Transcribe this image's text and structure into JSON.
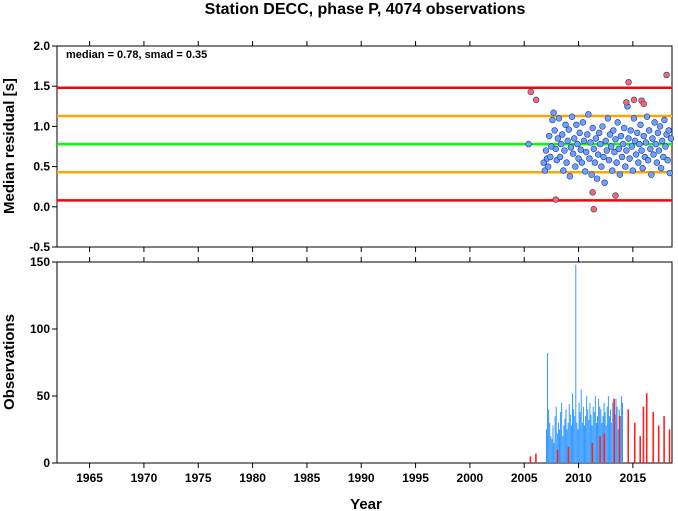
{
  "chart_data": [
    {
      "type": "scatter",
      "title": "Station DECC, phase P, 4074 observations",
      "ylabel": "Median residual [s]",
      "annotation": "median = 0.78, smad = 0.35",
      "xlim": [
        1962,
        2018.6
      ],
      "ylim": [
        -0.5,
        2.0
      ],
      "yticks": [
        "-0.5",
        "0.0",
        "0.5",
        "1.0",
        "1.5",
        "2.0"
      ],
      "ytick_values": [
        -0.5,
        0.0,
        0.5,
        1.0,
        1.5,
        2.0
      ],
      "reference_lines": [
        {
          "value": 1.48,
          "color": "#ff0000"
        },
        {
          "value": 1.13,
          "color": "#ffa500"
        },
        {
          "value": 0.78,
          "color": "#00ff00"
        },
        {
          "value": 0.43,
          "color": "#ffa500"
        },
        {
          "value": 0.08,
          "color": "#ff0000"
        }
      ],
      "series": [
        {
          "color": "#6fa0ff",
          "points": [
            [
              2005.4,
              0.78
            ],
            [
              2006.8,
              0.55
            ],
            [
              2006.9,
              0.45
            ],
            [
              2007.0,
              0.7
            ],
            [
              2007.1,
              0.6
            ],
            [
              2007.2,
              0.5
            ],
            [
              2007.3,
              0.88
            ],
            [
              2007.4,
              0.62
            ],
            [
              2007.5,
              0.75
            ],
            [
              2007.6,
              1.08
            ],
            [
              2007.7,
              1.17
            ],
            [
              2007.8,
              0.95
            ],
            [
              2007.9,
              0.72
            ],
            [
              2008.0,
              0.58
            ],
            [
              2008.1,
              0.85
            ],
            [
              2008.2,
              1.1
            ],
            [
              2008.3,
              0.62
            ],
            [
              2008.4,
              0.78
            ],
            [
              2008.5,
              0.9
            ],
            [
              2008.6,
              0.45
            ],
            [
              2008.7,
              0.7
            ],
            [
              2008.8,
              1.02
            ],
            [
              2008.9,
              0.55
            ],
            [
              2009.0,
              0.82
            ],
            [
              2009.1,
              0.96
            ],
            [
              2009.2,
              0.38
            ],
            [
              2009.3,
              0.74
            ],
            [
              2009.4,
              1.12
            ],
            [
              2009.5,
              0.66
            ],
            [
              2009.6,
              0.85
            ],
            [
              2009.7,
              0.5
            ],
            [
              2009.8,
              1.02
            ],
            [
              2009.9,
              0.78
            ],
            [
              2010.0,
              0.6
            ],
            [
              2010.1,
              0.92
            ],
            [
              2010.2,
              0.71
            ],
            [
              2010.3,
              0.55
            ],
            [
              2010.4,
              1.05
            ],
            [
              2010.5,
              0.82
            ],
            [
              2010.6,
              0.44
            ],
            [
              2010.7,
              0.68
            ],
            [
              2010.8,
              0.9
            ],
            [
              2010.9,
              1.15
            ],
            [
              2011.0,
              0.6
            ],
            [
              2011.1,
              0.8
            ],
            [
              2011.2,
              0.4
            ],
            [
              2011.3,
              0.98
            ],
            [
              2011.4,
              0.72
            ],
            [
              2011.5,
              0.55
            ],
            [
              2011.6,
              0.85
            ],
            [
              2011.7,
              0.35
            ],
            [
              2011.8,
              0.65
            ],
            [
              2011.9,
              0.92
            ],
            [
              2012.0,
              0.78
            ],
            [
              2012.1,
              0.5
            ],
            [
              2012.2,
              1.0
            ],
            [
              2012.3,
              0.62
            ],
            [
              2012.4,
              0.3
            ],
            [
              2012.5,
              0.82
            ],
            [
              2012.6,
              0.7
            ],
            [
              2012.7,
              1.1
            ],
            [
              2012.8,
              0.58
            ],
            [
              2012.9,
              0.9
            ],
            [
              2013.0,
              0.75
            ],
            [
              2013.1,
              0.45
            ],
            [
              2013.2,
              0.95
            ],
            [
              2013.3,
              0.68
            ],
            [
              2013.4,
              0.84
            ],
            [
              2013.5,
              0.55
            ],
            [
              2013.6,
              1.05
            ],
            [
              2013.7,
              0.72
            ],
            [
              2013.8,
              0.4
            ],
            [
              2013.9,
              0.88
            ],
            [
              2014.0,
              0.62
            ],
            [
              2014.1,
              0.78
            ],
            [
              2014.2,
              0.98
            ],
            [
              2014.3,
              0.5
            ],
            [
              2014.4,
              0.7
            ],
            [
              2014.5,
              1.25
            ],
            [
              2014.6,
              0.85
            ],
            [
              2014.7,
              0.6
            ],
            [
              2014.8,
              0.95
            ],
            [
              2014.9,
              0.75
            ],
            [
              2015.0,
              0.45
            ],
            [
              2015.1,
              1.1
            ],
            [
              2015.2,
              0.82
            ],
            [
              2015.3,
              0.65
            ],
            [
              2015.4,
              0.92
            ],
            [
              2015.5,
              0.55
            ],
            [
              2015.6,
              0.78
            ],
            [
              2015.7,
              1.02
            ],
            [
              2015.8,
              0.7
            ],
            [
              2015.9,
              0.48
            ],
            [
              2016.0,
              0.88
            ],
            [
              2016.1,
              0.62
            ],
            [
              2016.2,
              0.8
            ],
            [
              2016.3,
              1.12
            ],
            [
              2016.4,
              0.58
            ],
            [
              2016.5,
              0.95
            ],
            [
              2016.6,
              0.72
            ],
            [
              2016.7,
              0.4
            ],
            [
              2016.8,
              0.85
            ],
            [
              2016.9,
              0.65
            ],
            [
              2017.0,
              1.05
            ],
            [
              2017.1,
              0.78
            ],
            [
              2017.2,
              0.55
            ],
            [
              2017.3,
              0.92
            ],
            [
              2017.4,
              0.7
            ],
            [
              2017.5,
              1.0
            ],
            [
              2017.6,
              0.48
            ],
            [
              2017.7,
              0.82
            ],
            [
              2017.8,
              0.62
            ],
            [
              2017.9,
              1.08
            ],
            [
              2018.0,
              0.75
            ],
            [
              2018.1,
              0.9
            ],
            [
              2018.2,
              0.58
            ],
            [
              2018.3,
              0.95
            ],
            [
              2018.4,
              0.42
            ],
            [
              2018.5,
              0.85
            ]
          ]
        },
        {
          "color": "#ff6666",
          "points": [
            [
              2005.6,
              1.43
            ],
            [
              2006.1,
              1.33
            ],
            [
              2007.9,
              0.09
            ],
            [
              2011.3,
              0.18
            ],
            [
              2011.4,
              -0.03
            ],
            [
              2013.4,
              0.14
            ],
            [
              2014.4,
              1.3
            ],
            [
              2014.6,
              1.55
            ],
            [
              2015.1,
              1.33
            ],
            [
              2015.8,
              1.32
            ],
            [
              2016.0,
              1.28
            ],
            [
              2018.1,
              1.64
            ]
          ]
        }
      ]
    },
    {
      "type": "bar",
      "xlabel": "Year",
      "ylabel": "Observations",
      "xlim": [
        1962,
        2018.6
      ],
      "ylim": [
        0,
        150
      ],
      "xticks": [
        "1965",
        "1970",
        "1975",
        "1980",
        "1985",
        "1990",
        "1995",
        "2000",
        "2005",
        "2010",
        "2015"
      ],
      "xtick_values": [
        1965,
        1970,
        1975,
        1980,
        1985,
        1990,
        1995,
        2000,
        2005,
        2010,
        2015
      ],
      "yticks": [
        "0",
        "50",
        "100",
        "150"
      ],
      "ytick_values": [
        0,
        50,
        100,
        150
      ],
      "series": [
        {
          "color": "#3399ff",
          "start": 2007.0,
          "step": 0.1,
          "values": [
            25,
            82,
            40,
            30,
            20,
            18,
            28,
            15,
            35,
            42,
            22,
            30,
            25,
            38,
            45,
            20,
            28,
            33,
            40,
            25,
            30,
            44,
            36,
            28,
            52,
            40,
            35,
            148,
            30,
            25,
            45,
            38,
            55,
            30,
            42,
            28,
            35,
            50,
            40,
            32,
            45,
            36,
            28,
            42,
            38,
            50,
            30,
            35,
            48,
            42,
            40,
            30,
            35,
            45,
            38,
            28,
            42,
            50,
            35,
            40,
            30,
            45,
            38,
            36,
            48,
            42,
            25,
            40,
            35,
            50,
            45
          ]
        },
        {
          "color": "#ff2020",
          "points": [
            [
              2005.5,
              5
            ],
            [
              2006.0,
              7
            ],
            [
              2008.0,
              10
            ],
            [
              2009.0,
              12
            ],
            [
              2011.2,
              15
            ],
            [
              2011.9,
              20
            ],
            [
              2012.3,
              22
            ],
            [
              2013.2,
              48
            ],
            [
              2013.7,
              35
            ],
            [
              2014.5,
              40
            ],
            [
              2015.1,
              30
            ],
            [
              2015.6,
              20
            ],
            [
              2015.9,
              42
            ],
            [
              2016.2,
              52
            ],
            [
              2016.8,
              38
            ],
            [
              2017.3,
              28
            ],
            [
              2017.8,
              35
            ],
            [
              2018.3,
              25
            ]
          ]
        }
      ]
    }
  ]
}
